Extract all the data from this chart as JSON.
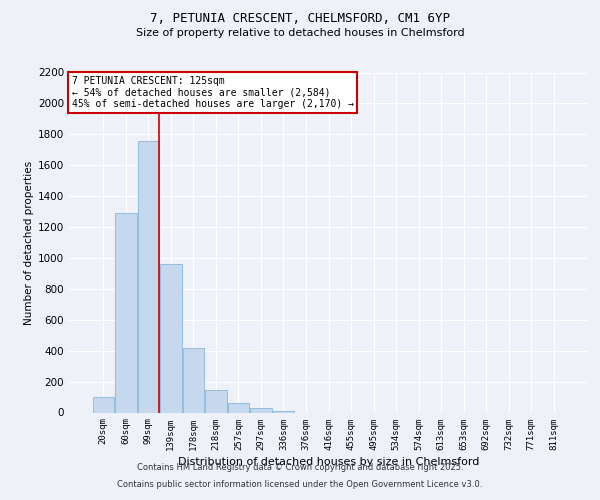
{
  "title_line1": "7, PETUNIA CRESCENT, CHELMSFORD, CM1 6YP",
  "title_line2": "Size of property relative to detached houses in Chelmsford",
  "xlabel": "Distribution of detached houses by size in Chelmsford",
  "ylabel": "Number of detached properties",
  "categories": [
    "20sqm",
    "60sqm",
    "99sqm",
    "139sqm",
    "178sqm",
    "218sqm",
    "257sqm",
    "297sqm",
    "336sqm",
    "376sqm",
    "416sqm",
    "455sqm",
    "495sqm",
    "534sqm",
    "574sqm",
    "613sqm",
    "653sqm",
    "692sqm",
    "732sqm",
    "771sqm",
    "811sqm"
  ],
  "values": [
    100,
    1290,
    1760,
    960,
    420,
    145,
    60,
    30,
    10,
    0,
    0,
    0,
    0,
    0,
    0,
    0,
    0,
    0,
    0,
    0,
    0
  ],
  "bar_color": "#c5d8ee",
  "bar_edge_color": "#7aadd4",
  "vline_color": "#cc0000",
  "annotation_text": "7 PETUNIA CRESCENT: 125sqm\n← 54% of detached houses are smaller (2,584)\n45% of semi-detached houses are larger (2,170) →",
  "annotation_box_color": "#ffffff",
  "annotation_box_edge": "#cc0000",
  "ylim": [
    0,
    2200
  ],
  "yticks": [
    0,
    200,
    400,
    600,
    800,
    1000,
    1200,
    1400,
    1600,
    1800,
    2000,
    2200
  ],
  "background_color": "#eef2f8",
  "grid_color": "#ffffff",
  "footer_line1": "Contains HM Land Registry data © Crown copyright and database right 2025.",
  "footer_line2": "Contains public sector information licensed under the Open Government Licence v3.0."
}
